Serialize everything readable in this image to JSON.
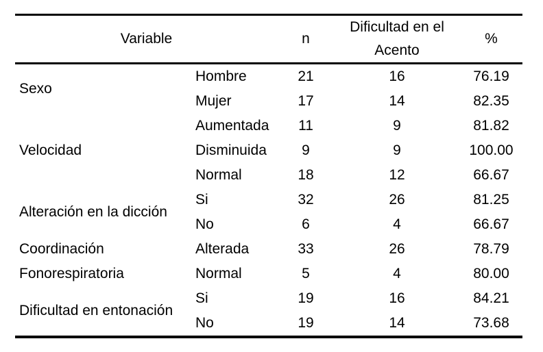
{
  "table": {
    "header": {
      "variable": "Variable",
      "n": "n",
      "dificultad_en_el_acento": "Dificultad en el Acento",
      "percent": "%"
    },
    "groups": [
      {
        "label": "Sexo",
        "rows": [
          {
            "category": "Hombre",
            "n": "21",
            "dificultad": "16",
            "percent": "76.19"
          },
          {
            "category": "Mujer",
            "n": "17",
            "dificultad": "14",
            "percent": "82.35"
          }
        ]
      },
      {
        "label": "Velocidad",
        "rows": [
          {
            "category": "Aumentada",
            "n": "11",
            "dificultad": "9",
            "percent": "81.82"
          },
          {
            "category": "Disminuida",
            "n": "9",
            "dificultad": "9",
            "percent": "100.00"
          },
          {
            "category": "Normal",
            "n": "18",
            "dificultad": "12",
            "percent": "66.67"
          }
        ]
      },
      {
        "label": "Alteración en la dicción",
        "rows": [
          {
            "category": "Si",
            "n": "32",
            "dificultad": "26",
            "percent": "81.25"
          },
          {
            "category": "No",
            "n": "6",
            "dificultad": "4",
            "percent": "66.67"
          }
        ]
      },
      {
        "label": "Coordinación Fonorespiratoria",
        "rows": [
          {
            "category": "Alterada",
            "n": "33",
            "dificultad": "26",
            "percent": "78.79"
          },
          {
            "category": "Normal",
            "n": "5",
            "dificultad": "4",
            "percent": "80.00"
          }
        ]
      },
      {
        "label": "Dificultad en entonación",
        "rows": [
          {
            "category": "Si",
            "n": "19",
            "dificultad": "16",
            "percent": "84.21"
          },
          {
            "category": "No",
            "n": "19",
            "dificultad": "14",
            "percent": "73.68"
          }
        ]
      }
    ]
  }
}
